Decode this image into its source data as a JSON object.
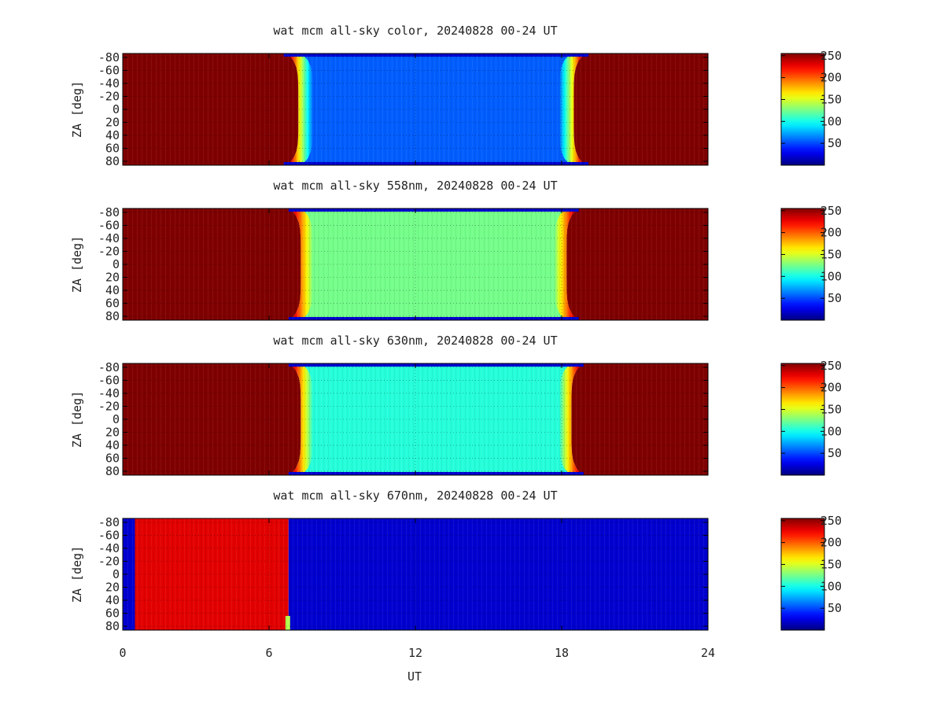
{
  "colors": {
    "background": "#ffffff",
    "text": "#222222",
    "frame": "#000000",
    "grid": "#000000",
    "day_saturated": "#8b1010",
    "day_670": "#e01a1a",
    "night_670": "#0a2bd6",
    "colormap": "jet"
  },
  "xaxis": {
    "label": "UT",
    "range": [
      0,
      24
    ],
    "ticks": [
      0,
      6,
      12,
      18,
      24
    ],
    "tick_labels": [
      "0",
      "6",
      "12",
      "18",
      "24"
    ]
  },
  "yaxis": {
    "label": "ZA [deg]",
    "range": [
      -86,
      86
    ],
    "tick_labels": [
      "-80",
      "-60",
      "-40",
      "-20",
      "0",
      "20",
      "40",
      "60",
      "80"
    ],
    "tick_values": [
      -80,
      -60,
      -40,
      -20,
      0,
      20,
      40,
      60,
      80
    ]
  },
  "colorbar": {
    "range": [
      0,
      255
    ],
    "tick_labels": [
      "250",
      "200",
      "150",
      "100",
      "50"
    ],
    "tick_values": [
      250,
      200,
      150,
      100,
      50
    ]
  },
  "chart_data": [
    {
      "type": "heatmap",
      "title": "wat mcm all-sky color, 20240828 00-24 UT",
      "x_range": [
        0,
        24
      ],
      "y_range": [
        -86,
        86
      ],
      "z_range": [
        0,
        255
      ],
      "day_value": 255,
      "night_value": 55,
      "night_start_ut": 7.2,
      "night_end_ut": 18.5,
      "twilight_width_h": 0.6
    },
    {
      "type": "heatmap",
      "title": "wat mcm all-sky 558nm, 20240828 00-24 UT",
      "x_range": [
        0,
        24
      ],
      "y_range": [
        -86,
        86
      ],
      "z_range": [
        0,
        255
      ],
      "day_value": 255,
      "night_value": 125,
      "night_start_ut": 7.3,
      "night_end_ut": 18.2,
      "twilight_width_h": 0.5
    },
    {
      "type": "heatmap",
      "title": "wat mcm all-sky 630nm, 20240828 00-24 UT",
      "x_range": [
        0,
        24
      ],
      "y_range": [
        -86,
        86
      ],
      "z_range": [
        0,
        255
      ],
      "day_value": 255,
      "night_value": 105,
      "night_start_ut": 7.3,
      "night_end_ut": 18.4,
      "twilight_width_h": 0.5
    },
    {
      "type": "heatmap",
      "title": "wat mcm all-sky 670nm, 20240828 00-24 UT",
      "x_range": [
        0,
        24
      ],
      "y_range": [
        -86,
        86
      ],
      "z_range": [
        0,
        255
      ],
      "blocks": [
        {
          "x0": 0.0,
          "x1": 0.5,
          "value": 20
        },
        {
          "x0": 0.5,
          "x1": 6.8,
          "value": 230
        },
        {
          "x0": 6.8,
          "x1": 24.0,
          "value": 20
        }
      ]
    }
  ]
}
